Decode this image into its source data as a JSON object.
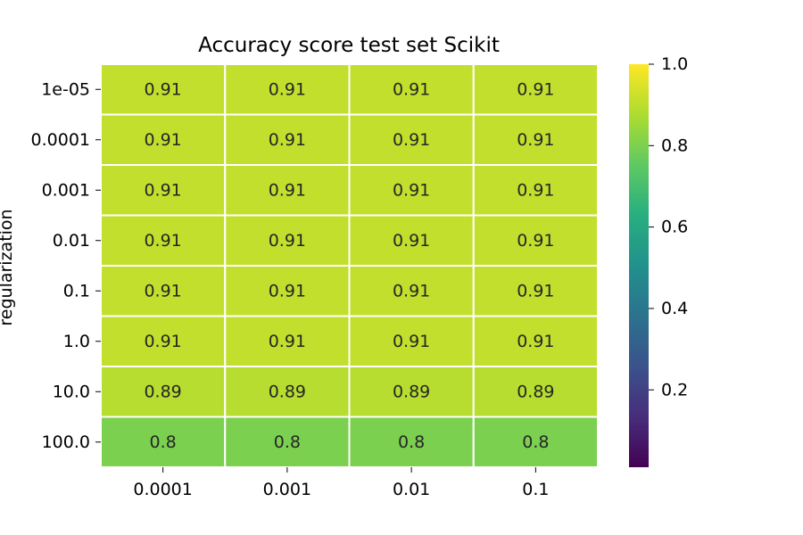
{
  "chart_data": {
    "type": "heatmap",
    "title": "Accuracy score test set Scikit",
    "xlabel": "",
    "ylabel": "regularization",
    "x_categories": [
      "0.0001",
      "0.001",
      "0.01",
      "0.1"
    ],
    "y_categories": [
      "1e-05",
      "0.0001",
      "0.001",
      "0.01",
      "0.1",
      "1.0",
      "10.0",
      "100.0"
    ],
    "values": [
      [
        0.91,
        0.91,
        0.91,
        0.91
      ],
      [
        0.91,
        0.91,
        0.91,
        0.91
      ],
      [
        0.91,
        0.91,
        0.91,
        0.91
      ],
      [
        0.91,
        0.91,
        0.91,
        0.91
      ],
      [
        0.91,
        0.91,
        0.91,
        0.91
      ],
      [
        0.91,
        0.91,
        0.91,
        0.91
      ],
      [
        0.89,
        0.89,
        0.89,
        0.89
      ],
      [
        0.8,
        0.8,
        0.8,
        0.8
      ]
    ],
    "cell_labels": [
      [
        "0.91",
        "0.91",
        "0.91",
        "0.91"
      ],
      [
        "0.91",
        "0.91",
        "0.91",
        "0.91"
      ],
      [
        "0.91",
        "0.91",
        "0.91",
        "0.91"
      ],
      [
        "0.91",
        "0.91",
        "0.91",
        "0.91"
      ],
      [
        "0.91",
        "0.91",
        "0.91",
        "0.91"
      ],
      [
        "0.91",
        "0.91",
        "0.91",
        "0.91"
      ],
      [
        "0.89",
        "0.89",
        "0.89",
        "0.89"
      ],
      [
        "0.8",
        "0.8",
        "0.8",
        "0.8"
      ]
    ],
    "colormap": "viridis",
    "vmin": 0.01,
    "vmax": 1.0,
    "colorbar_ticks": [
      0.2,
      0.4,
      0.6,
      0.8,
      1.0
    ],
    "colorbar_tick_labels": [
      "0.2",
      "0.4",
      "0.6",
      "0.8",
      "1.0"
    ],
    "grid": false
  }
}
